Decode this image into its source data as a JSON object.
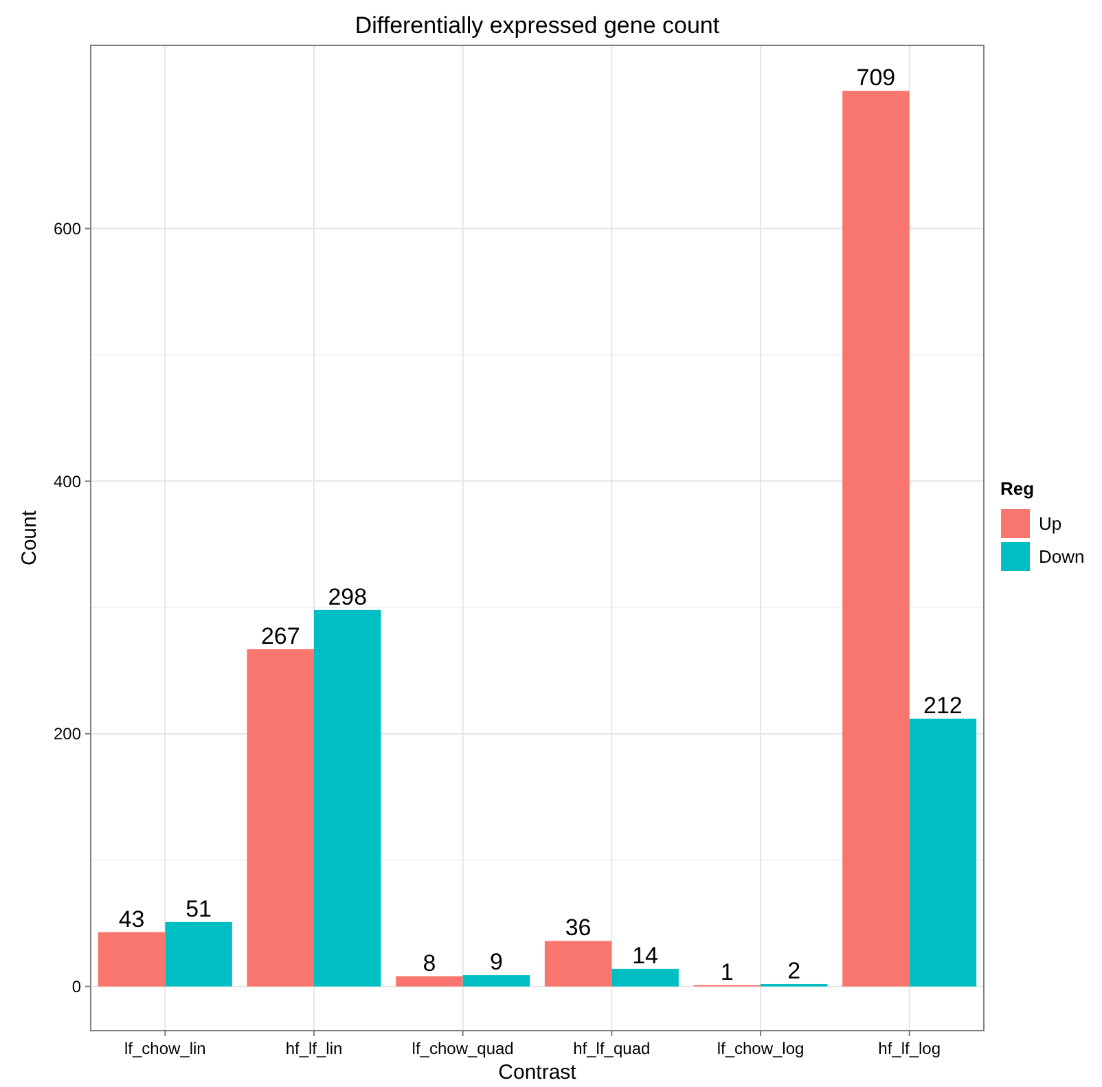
{
  "chart_data": {
    "type": "bar",
    "title": "Differentially expressed gene count",
    "xlabel": "Contrast",
    "ylabel": "Count",
    "legend_title": "Reg",
    "categories": [
      "lf_chow_lin",
      "hf_lf_lin",
      "lf_chow_quad",
      "hf_lf_quad",
      "lf_chow_log",
      "hf_lf_log"
    ],
    "series": [
      {
        "name": "Up",
        "color": "#f8766d",
        "values": [
          43,
          267,
          8,
          36,
          1,
          709
        ]
      },
      {
        "name": "Down",
        "color": "#00bfc4",
        "values": [
          51,
          298,
          9,
          14,
          2,
          212
        ]
      }
    ],
    "ylim": [
      -35,
      745
    ],
    "yticks": [
      0,
      200,
      400,
      600
    ],
    "grid": true,
    "legend": "right",
    "data_labels": true
  }
}
